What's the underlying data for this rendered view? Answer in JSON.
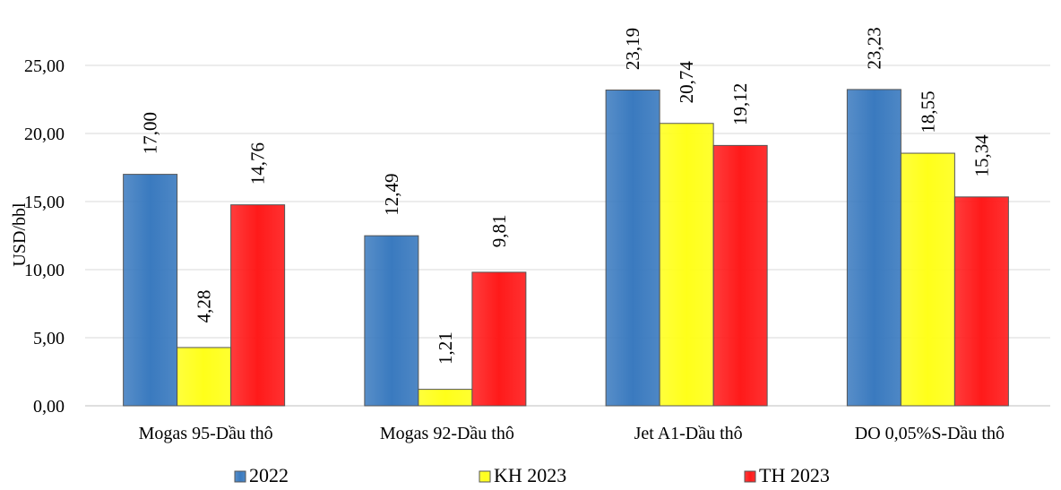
{
  "chart_data": {
    "type": "bar",
    "title": "",
    "xlabel": "",
    "ylabel": "USD/bbl",
    "ylim": [
      0,
      25
    ],
    "yticks": [
      "0,00",
      "5,00",
      "10,00",
      "15,00",
      "20,00",
      "25,00"
    ],
    "categories": [
      "Mogas 95-Dầu thô",
      "Mogas 92-Dầu thô",
      "Jet A1-Dầu thô",
      "DO 0,05%S-Dầu thô"
    ],
    "series": [
      {
        "name": "2022",
        "color": "#3a7abf",
        "values": [
          17.0,
          12.49,
          23.19,
          23.23
        ],
        "labels": [
          "17,00",
          "12,49",
          "23,19",
          "23,23"
        ]
      },
      {
        "name": "KH 2023",
        "color": "#ffff1a",
        "values": [
          4.28,
          1.21,
          20.74,
          18.55
        ],
        "labels": [
          "4,28",
          "1,21",
          "20,74",
          "18,55"
        ]
      },
      {
        "name": "TH 2023",
        "color": "#ff1a1a",
        "values": [
          14.76,
          9.81,
          19.12,
          15.34
        ],
        "labels": [
          "14,76",
          "9,81",
          "19,12",
          "15,34"
        ]
      }
    ],
    "grid": true,
    "legend": "bottom"
  }
}
